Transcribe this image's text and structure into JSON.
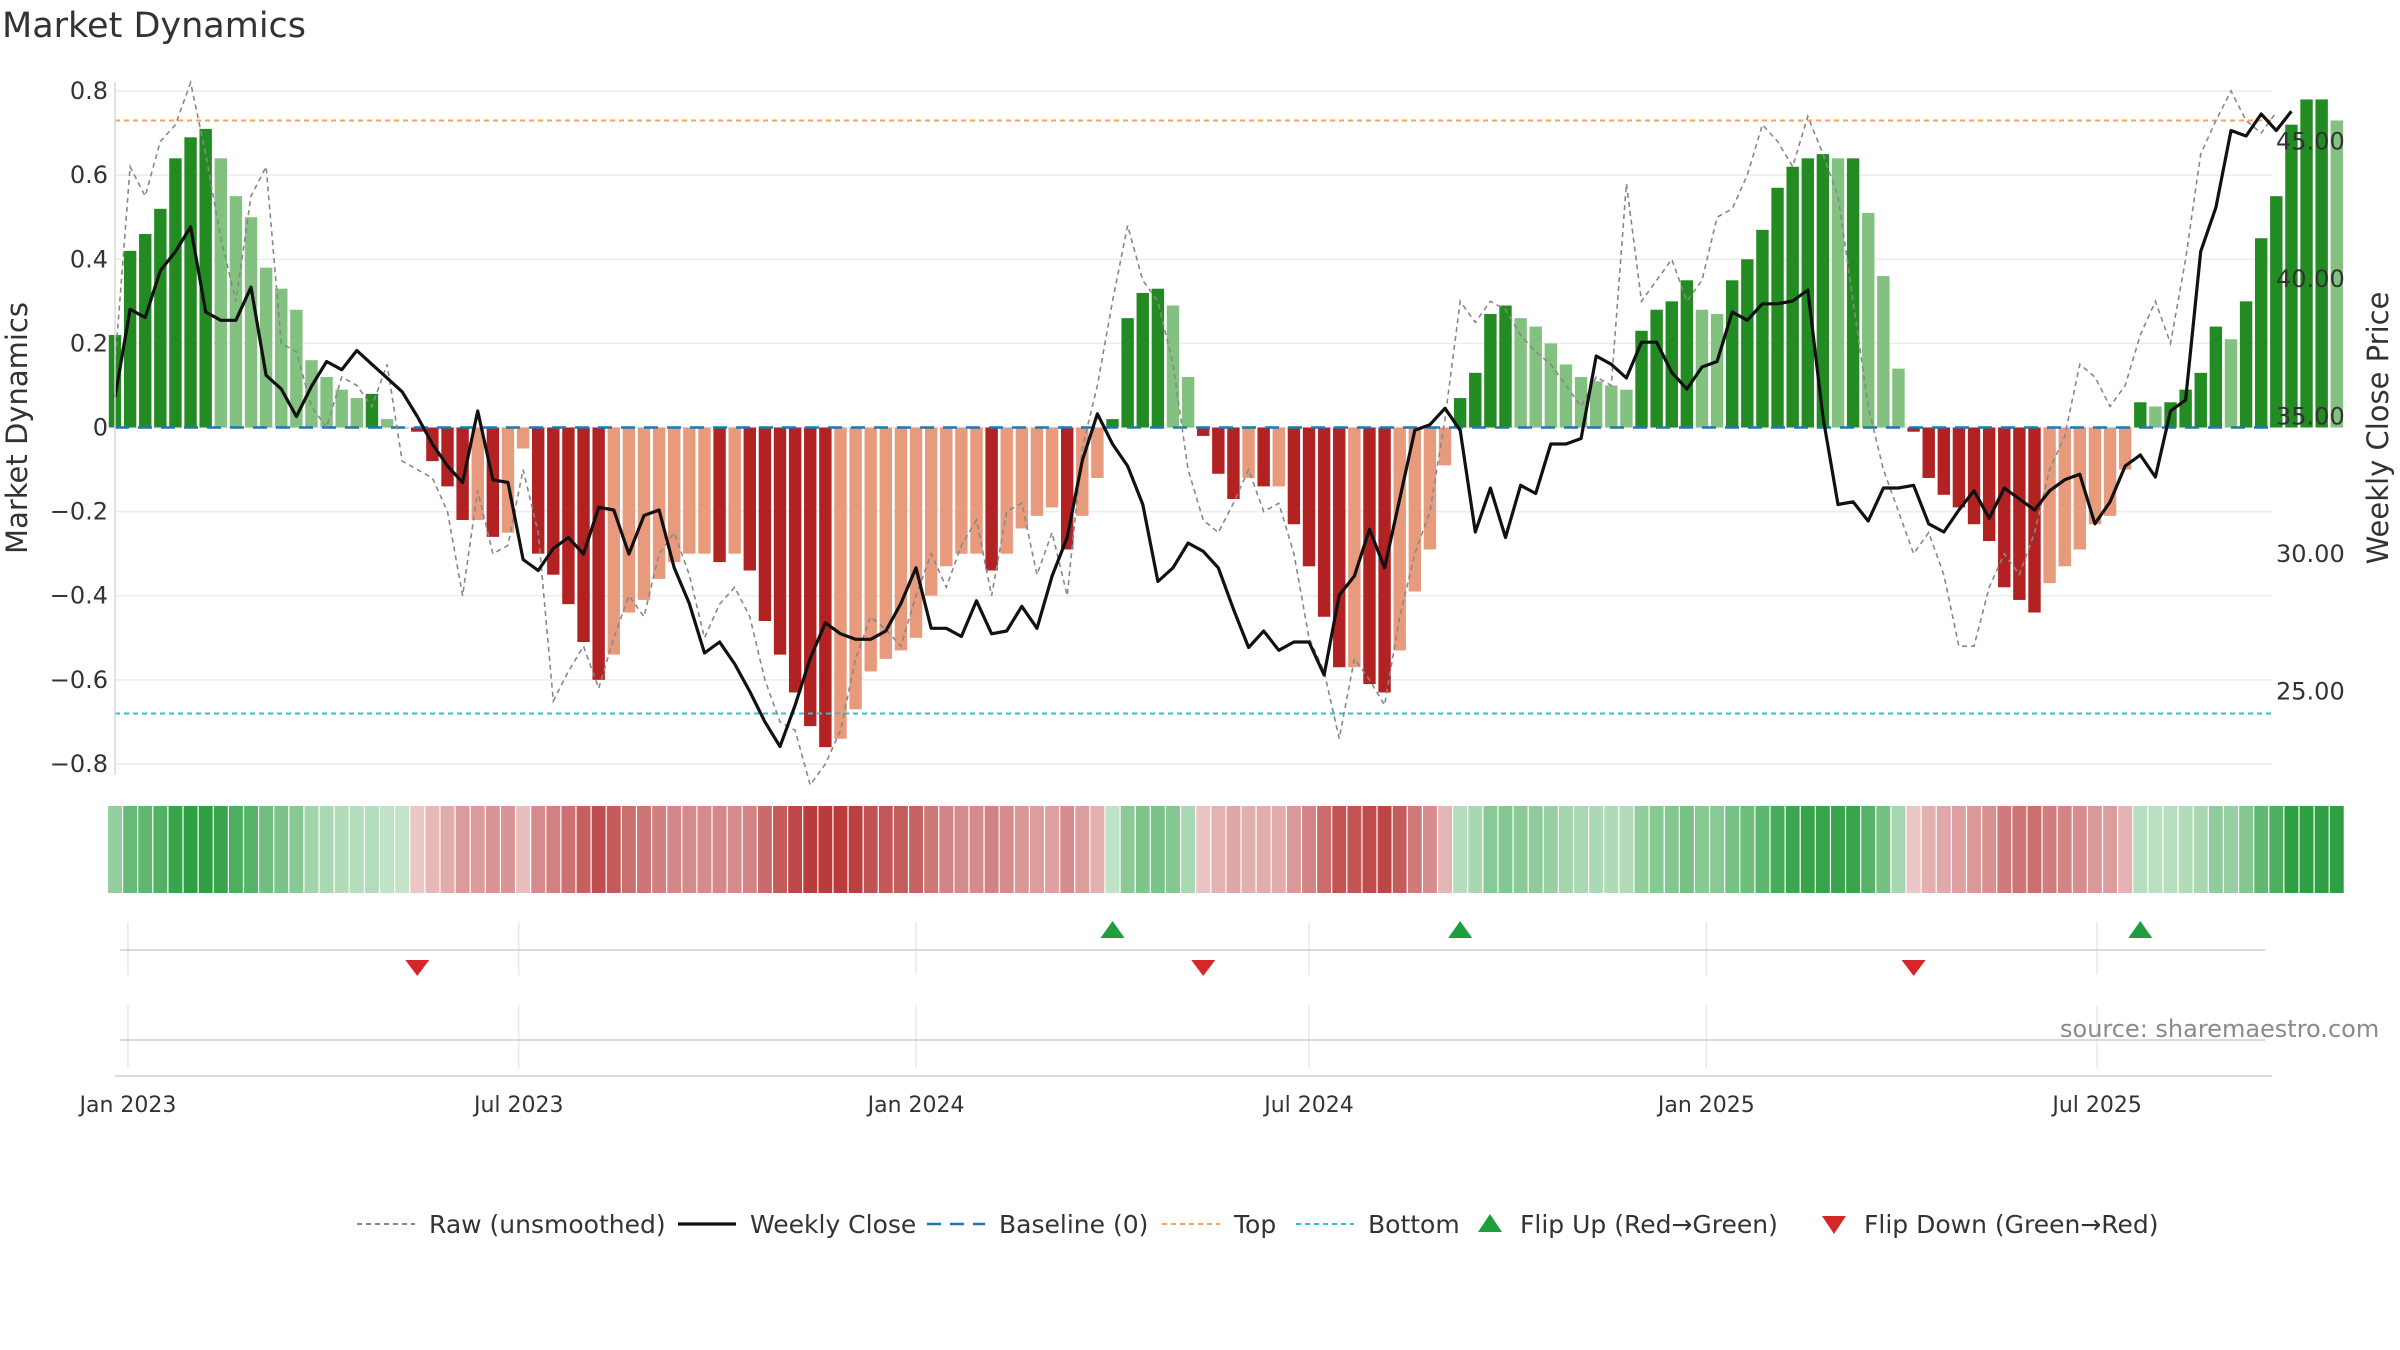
{
  "title": "Market Dynamics",
  "source": "source: sharemaestro.com",
  "chart_data": {
    "type": "bar",
    "title": "Market Dynamics",
    "ylabel": "Market Dynamics",
    "ylabel_right": "Weekly Close Price",
    "ylim": [
      -0.85,
      0.85
    ],
    "ylim_right": [
      21.6,
      47.6
    ],
    "yticks": [
      -0.8,
      -0.6,
      -0.4,
      -0.2,
      0,
      0.2,
      0.4,
      0.6,
      0.8
    ],
    "ytick_labels": [
      "−0.8",
      "−0.6",
      "−0.4",
      "−0.2",
      "0",
      "0.2",
      "0.4",
      "0.6",
      "0.8"
    ],
    "yticks_right": [
      25,
      30,
      35,
      40,
      45
    ],
    "ytick_labels_right": [
      "25.00",
      "30.00",
      "35.00",
      "40.00",
      "45.00"
    ],
    "x_start": "2022-12-26",
    "x_range": [
      "2022-12-26",
      "2025-09-20"
    ],
    "x_step_days": 7,
    "xticks": [
      {
        "date": "2023-01-01",
        "label": "Jan 2023"
      },
      {
        "date": "2023-07-01",
        "label": "Jul 2023"
      },
      {
        "date": "2024-01-01",
        "label": "Jan 2024"
      },
      {
        "date": "2024-07-01",
        "label": "Jul 2024"
      },
      {
        "date": "2025-01-01",
        "label": "Jan 2025"
      },
      {
        "date": "2025-07-01",
        "label": "Jul 2025"
      }
    ],
    "top_level": 0.73,
    "bottom_level": -0.68,
    "baseline": 0,
    "colors": {
      "strong_up": "#228b22",
      "weak_up": "#82c17f",
      "strong_down": "#b22222",
      "weak_down": "#e89a7c",
      "close": "#111111",
      "raw": "#888888",
      "baseline": "#1f77b4",
      "top": "#ff9f5a",
      "bottom": "#2ec4c4",
      "flip_up": "#1e9e3e",
      "flip_down": "#d62728"
    },
    "momentum": [
      0.22,
      0.42,
      0.46,
      0.52,
      0.64,
      0.69,
      0.71,
      0.64,
      0.55,
      0.5,
      0.38,
      0.33,
      0.28,
      0.16,
      0.12,
      0.09,
      0.07,
      0.08,
      0.02,
      0.0,
      -0.01,
      -0.08,
      -0.14,
      -0.22,
      -0.22,
      -0.26,
      -0.25,
      -0.05,
      -0.3,
      -0.35,
      -0.42,
      -0.51,
      -0.6,
      -0.54,
      -0.44,
      -0.41,
      -0.36,
      -0.32,
      -0.3,
      -0.3,
      -0.32,
      -0.3,
      -0.34,
      -0.46,
      -0.54,
      -0.63,
      -0.71,
      -0.76,
      -0.74,
      -0.67,
      -0.58,
      -0.55,
      -0.53,
      -0.5,
      -0.4,
      -0.33,
      -0.3,
      -0.3,
      -0.34,
      -0.3,
      -0.24,
      -0.21,
      -0.19,
      -0.29,
      -0.21,
      -0.12,
      0.02,
      0.26,
      0.32,
      0.33,
      0.29,
      0.12,
      -0.02,
      -0.11,
      -0.17,
      -0.12,
      -0.14,
      -0.14,
      -0.23,
      -0.33,
      -0.45,
      -0.57,
      -0.57,
      -0.61,
      -0.63,
      -0.53,
      -0.39,
      -0.29,
      -0.09,
      0.07,
      0.13,
      0.27,
      0.29,
      0.26,
      0.24,
      0.2,
      0.15,
      0.12,
      0.11,
      0.1,
      0.09,
      0.23,
      0.28,
      0.3,
      0.35,
      0.28,
      0.27,
      0.35,
      0.4,
      0.47,
      0.57,
      0.62,
      0.64,
      0.65,
      0.64,
      0.64,
      0.51,
      0.36,
      0.14,
      -0.01,
      -0.12,
      -0.16,
      -0.19,
      -0.23,
      -0.27,
      -0.38,
      -0.41,
      -0.44,
      -0.37,
      -0.33,
      -0.29,
      -0.23,
      -0.21,
      -0.1,
      0.06,
      0.05,
      0.06,
      0.09,
      0.13,
      0.24,
      0.21,
      0.3,
      0.45,
      0.55,
      0.72,
      0.78,
      0.78,
      0.73
    ],
    "raw": [
      0.15,
      0.62,
      0.55,
      0.68,
      0.72,
      0.82,
      0.65,
      0.45,
      0.3,
      0.55,
      0.62,
      0.2,
      0.18,
      0.05,
      0.0,
      0.12,
      0.1,
      0.05,
      0.15,
      -0.08,
      -0.1,
      -0.12,
      -0.2,
      -0.4,
      -0.15,
      -0.3,
      -0.28,
      -0.1,
      -0.25,
      -0.65,
      -0.58,
      -0.52,
      -0.62,
      -0.5,
      -0.4,
      -0.45,
      -0.3,
      -0.25,
      -0.35,
      -0.5,
      -0.42,
      -0.38,
      -0.45,
      -0.6,
      -0.7,
      -0.72,
      -0.85,
      -0.8,
      -0.72,
      -0.55,
      -0.45,
      -0.48,
      -0.52,
      -0.4,
      -0.3,
      -0.38,
      -0.28,
      -0.22,
      -0.4,
      -0.2,
      -0.18,
      -0.35,
      -0.25,
      -0.4,
      -0.05,
      0.1,
      0.3,
      0.48,
      0.35,
      0.3,
      0.15,
      -0.1,
      -0.22,
      -0.25,
      -0.18,
      -0.1,
      -0.2,
      -0.18,
      -0.3,
      -0.5,
      -0.58,
      -0.74,
      -0.55,
      -0.6,
      -0.66,
      -0.45,
      -0.3,
      -0.2,
      0.02,
      0.3,
      0.25,
      0.3,
      0.28,
      0.22,
      0.18,
      0.15,
      0.1,
      0.05,
      0.12,
      0.1,
      0.58,
      0.3,
      0.35,
      0.4,
      0.3,
      0.35,
      0.5,
      0.52,
      0.6,
      0.72,
      0.68,
      0.62,
      0.74,
      0.65,
      0.55,
      0.3,
      0.05,
      -0.1,
      -0.2,
      -0.3,
      -0.25,
      -0.35,
      -0.52,
      -0.52,
      -0.38,
      -0.3,
      -0.35,
      -0.25,
      -0.1,
      -0.02,
      0.15,
      0.12,
      0.05,
      0.1,
      0.22,
      0.3,
      0.2,
      0.4,
      0.65,
      0.73,
      0.8,
      0.73,
      0.7,
      0.75
    ],
    "close": [
      35.7,
      38.9,
      38.6,
      40.3,
      41.0,
      41.9,
      38.8,
      38.5,
      38.5,
      39.7,
      36.5,
      36.0,
      35.0,
      36.1,
      37.0,
      36.7,
      37.4,
      36.9,
      36.4,
      35.9,
      35.0,
      34.0,
      33.2,
      32.6,
      35.2,
      32.7,
      32.6,
      29.8,
      29.4,
      30.2,
      30.6,
      30.0,
      31.7,
      31.6,
      30.0,
      31.4,
      31.6,
      29.5,
      28.2,
      26.4,
      26.8,
      26.0,
      25.0,
      23.9,
      23.0,
      24.5,
      26.2,
      27.5,
      27.1,
      26.9,
      26.9,
      27.2,
      28.2,
      29.5,
      27.3,
      27.3,
      27.0,
      28.3,
      27.1,
      27.2,
      28.1,
      27.3,
      29.2,
      30.6,
      33.4,
      35.1,
      34.0,
      33.2,
      31.8,
      29.0,
      29.5,
      30.4,
      30.1,
      29.5,
      28.0,
      26.6,
      27.2,
      26.5,
      26.8,
      26.8,
      25.6,
      28.5,
      29.2,
      30.9,
      29.5,
      32.0,
      34.5,
      34.7,
      35.3,
      34.5,
      30.8,
      32.4,
      30.6,
      32.5,
      32.2,
      34.0,
      34.0,
      34.2,
      37.2,
      36.9,
      36.4,
      37.7,
      37.7,
      36.6,
      36.0,
      36.8,
      37.0,
      38.8,
      38.5,
      39.1,
      39.1,
      39.2,
      39.6,
      35.0,
      31.8,
      31.9,
      31.2,
      32.4,
      32.4,
      32.5,
      31.1,
      30.8,
      31.6,
      32.3,
      31.3,
      32.4,
      32.0,
      31.6,
      32.3,
      32.7,
      32.9,
      31.1,
      31.9,
      33.2,
      33.6,
      32.8,
      35.2,
      35.6,
      41.0,
      42.6,
      45.4,
      45.2,
      46.0,
      45.4,
      46.1
    ]
  },
  "legend": {
    "raw": "Raw (unsmoothed)",
    "close": "Weekly Close",
    "baseline": "Baseline (0)",
    "top": "Top",
    "bottom": "Bottom",
    "flip_up": "Flip Up (Red→Green)",
    "flip_down": "Flip Down (Green→Red)"
  }
}
